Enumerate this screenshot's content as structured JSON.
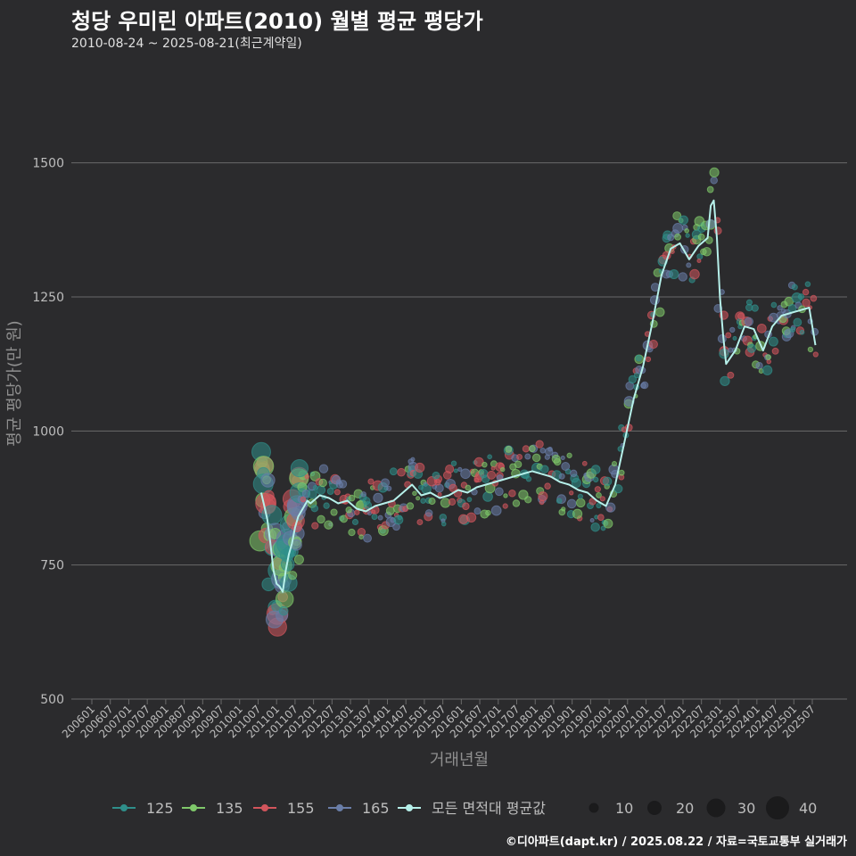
{
  "header": {
    "title": "청당 우미린 아파트(2010) 월별 평균 평당가",
    "subtitle": "2010-08-24 ~ 2025-08-21(최근계약일)"
  },
  "footer": {
    "source": "©디아파트(dapt.kr) / 2025.08.22 / 자료=국토교통부 실거래가"
  },
  "colors": {
    "background": "#2b2b2d",
    "grid": "#6a6a6a",
    "axis_text": "#bdbdbd",
    "series_125": "#2f8f8a",
    "series_135": "#7fc86a",
    "series_155": "#d2555c",
    "series_165": "#6a7ea8",
    "average_line": "#b6f0ea"
  },
  "chart_data": {
    "type": "line",
    "title": "청당 우미린 아파트(2010) 월별 평균 평당가",
    "xlabel": "거래년월",
    "ylabel": "평균 평당가(만 원)",
    "ylim": [
      500,
      1650
    ],
    "yticks": [
      500,
      750,
      1000,
      1250,
      1500
    ],
    "xticks": [
      "200601",
      "200607",
      "200701",
      "200707",
      "200801",
      "200807",
      "200901",
      "200907",
      "201001",
      "201007",
      "201101",
      "201107",
      "201201",
      "201207",
      "201301",
      "201307",
      "201401",
      "201407",
      "201501",
      "201507",
      "201601",
      "201607",
      "201701",
      "201707",
      "201801",
      "201807",
      "201901",
      "201907",
      "202001",
      "202007",
      "202101",
      "202107",
      "202201",
      "202207",
      "202301",
      "202307",
      "202401",
      "202407",
      "202501",
      "202507"
    ],
    "grid": true,
    "legend_series": [
      {
        "name": "125",
        "color": "#2f8f8a"
      },
      {
        "name": "135",
        "color": "#7fc86a"
      },
      {
        "name": "155",
        "color": "#d2555c"
      },
      {
        "name": "165",
        "color": "#6a7ea8"
      },
      {
        "name": "모든 면적대 평균값",
        "color": "#b6f0ea"
      }
    ],
    "legend_sizes": [
      10,
      20,
      30,
      40
    ],
    "average_series": {
      "name": "모든 면적대 평균값",
      "points": [
        [
          "2010-08",
          885
        ],
        [
          "2010-09",
          860
        ],
        [
          "2010-10",
          835
        ],
        [
          "2010-11",
          790
        ],
        [
          "2010-12",
          740
        ],
        [
          "2011-01",
          715
        ],
        [
          "2011-02",
          710
        ],
        [
          "2011-03",
          700
        ],
        [
          "2011-04",
          740
        ],
        [
          "2011-05",
          770
        ],
        [
          "2011-06",
          790
        ],
        [
          "2011-07",
          820
        ],
        [
          "2011-08",
          840
        ],
        [
          "2011-09",
          850
        ],
        [
          "2011-10",
          860
        ],
        [
          "2011-11",
          870
        ],
        [
          "2011-12",
          865
        ],
        [
          "2012-03",
          880
        ],
        [
          "2012-06",
          875
        ],
        [
          "2012-09",
          865
        ],
        [
          "2012-12",
          870
        ],
        [
          "2013-03",
          855
        ],
        [
          "2013-06",
          850
        ],
        [
          "2013-09",
          860
        ],
        [
          "2013-12",
          865
        ],
        [
          "2014-03",
          870
        ],
        [
          "2014-06",
          885
        ],
        [
          "2014-09",
          900
        ],
        [
          "2014-12",
          880
        ],
        [
          "2015-03",
          885
        ],
        [
          "2015-06",
          875
        ],
        [
          "2015-09",
          880
        ],
        [
          "2015-12",
          890
        ],
        [
          "2016-03",
          885
        ],
        [
          "2016-06",
          895
        ],
        [
          "2016-09",
          900
        ],
        [
          "2016-12",
          905
        ],
        [
          "2017-03",
          910
        ],
        [
          "2017-06",
          915
        ],
        [
          "2017-09",
          920
        ],
        [
          "2017-12",
          925
        ],
        [
          "2018-03",
          920
        ],
        [
          "2018-06",
          915
        ],
        [
          "2018-09",
          905
        ],
        [
          "2018-12",
          900
        ],
        [
          "2019-03",
          890
        ],
        [
          "2019-06",
          885
        ],
        [
          "2019-09",
          870
        ],
        [
          "2019-12",
          860
        ],
        [
          "2020-03",
          900
        ],
        [
          "2020-06",
          980
        ],
        [
          "2020-09",
          1060
        ],
        [
          "2020-12",
          1120
        ],
        [
          "2021-03",
          1200
        ],
        [
          "2021-06",
          1290
        ],
        [
          "2021-09",
          1340
        ],
        [
          "2021-12",
          1350
        ],
        [
          "2022-03",
          1320
        ],
        [
          "2022-06",
          1345
        ],
        [
          "2022-09",
          1360
        ],
        [
          "2022-10",
          1420
        ],
        [
          "2022-11",
          1430
        ],
        [
          "2022-12",
          1360
        ],
        [
          "2023-01",
          1250
        ],
        [
          "2023-02",
          1180
        ],
        [
          "2023-03",
          1125
        ],
        [
          "2023-06",
          1150
        ],
        [
          "2023-09",
          1195
        ],
        [
          "2023-12",
          1190
        ],
        [
          "2024-03",
          1150
        ],
        [
          "2024-06",
          1195
        ],
        [
          "2024-09",
          1215
        ],
        [
          "2024-12",
          1220
        ],
        [
          "2025-03",
          1225
        ],
        [
          "2025-06",
          1230
        ],
        [
          "2025-08",
          1160
        ]
      ]
    }
  }
}
